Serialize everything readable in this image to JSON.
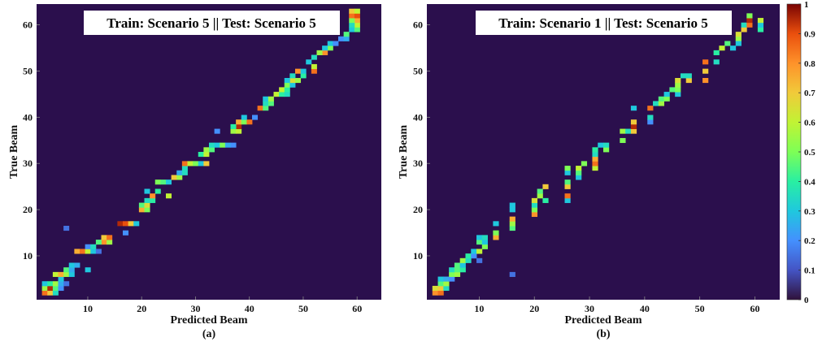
{
  "chart_data": [
    {
      "type": "heatmap",
      "panel_label": "(a)",
      "title": "Train: Scenario 5 || Test: Scenario 5",
      "xlabel": "Predicted Beam",
      "ylabel": "True Beam",
      "xlim": [
        1,
        64
      ],
      "ylim": [
        1,
        64
      ],
      "xticks": [
        10,
        20,
        30,
        40,
        50,
        60
      ],
      "yticks": [
        10,
        20,
        30,
        40,
        50,
        60
      ],
      "background_color": "#2b0f4d",
      "cells": [
        [
          2,
          2,
          0.85
        ],
        [
          2,
          3,
          0.7
        ],
        [
          2,
          4,
          0.35
        ],
        [
          3,
          2,
          0.55
        ],
        [
          3,
          3,
          0.95
        ],
        [
          3,
          4,
          0.45
        ],
        [
          3,
          5,
          0.2
        ],
        [
          4,
          2,
          0.3
        ],
        [
          4,
          3,
          0.4
        ],
        [
          4,
          4,
          0.55
        ],
        [
          4,
          5,
          0.25
        ],
        [
          4,
          6,
          0.15
        ],
        [
          5,
          5,
          0.3
        ],
        [
          6,
          4,
          0.6
        ],
        [
          6,
          5,
          0.75
        ],
        [
          6,
          6,
          0.55
        ],
        [
          6,
          7,
          0.3
        ],
        [
          7,
          6,
          0.45
        ],
        [
          7,
          7,
          0.25
        ],
        [
          7,
          10,
          0.3
        ],
        [
          8,
          7,
          0.3
        ],
        [
          8,
          8,
          0.25
        ],
        [
          11,
          8,
          0.75
        ],
        [
          11,
          9,
          0.85
        ],
        [
          11,
          10,
          0.6
        ],
        [
          11,
          11,
          0.3
        ],
        [
          11,
          12,
          0.15
        ],
        [
          12,
          10,
          0.2
        ],
        [
          12,
          11,
          0.35
        ],
        [
          13,
          13,
          0.8
        ],
        [
          13,
          14,
          0.55
        ],
        [
          13,
          12,
          0.45
        ],
        [
          14,
          13,
          0.7
        ],
        [
          14,
          14,
          0.85
        ],
        [
          15,
          17,
          0.2
        ],
        [
          16,
          6,
          0.15
        ],
        [
          17,
          16,
          0.95
        ],
        [
          17,
          17,
          0.9
        ],
        [
          17,
          18,
          0.7
        ],
        [
          17,
          19,
          0.3
        ],
        [
          20,
          20,
          0.75
        ],
        [
          20,
          21,
          0.5
        ],
        [
          21,
          20,
          0.45
        ],
        [
          21,
          21,
          0.65
        ],
        [
          22,
          22,
          0.4
        ],
        [
          22,
          21,
          0.35
        ],
        [
          23,
          22,
          0.8
        ],
        [
          23,
          25,
          0.6
        ],
        [
          24,
          23,
          0.4
        ],
        [
          24,
          21,
          0.3
        ],
        [
          26,
          23,
          0.5
        ],
        [
          26,
          24,
          0.45
        ],
        [
          26,
          25,
          0.3
        ],
        [
          27,
          26,
          0.7
        ],
        [
          27,
          27,
          0.55
        ],
        [
          28,
          27,
          0.25
        ],
        [
          28,
          28,
          0.35
        ],
        [
          29,
          28,
          0.35
        ],
        [
          30,
          28,
          0.85
        ],
        [
          30,
          29,
          0.6
        ],
        [
          30,
          30,
          0.5
        ],
        [
          30,
          31,
          0.3
        ],
        [
          30,
          32,
          0.7
        ],
        [
          32,
          31,
          0.4
        ],
        [
          32,
          32,
          0.6
        ],
        [
          33,
          32,
          0.55
        ],
        [
          33,
          33,
          0.45
        ],
        [
          34,
          33,
          0.35
        ],
        [
          34,
          34,
          0.3
        ],
        [
          34,
          35,
          0.5
        ],
        [
          34,
          36,
          0.25
        ],
        [
          34,
          37,
          0.2
        ],
        [
          37,
          34,
          0.2
        ],
        [
          37,
          37,
          0.55
        ],
        [
          37,
          38,
          0.6
        ],
        [
          38,
          38,
          0.95
        ],
        [
          38,
          37,
          0.4
        ],
        [
          39,
          38,
          0.75
        ],
        [
          39,
          39,
          0.5
        ],
        [
          39,
          40,
          0.85
        ],
        [
          40,
          39,
          0.3
        ],
        [
          40,
          41,
          0.2
        ],
        [
          42,
          42,
          0.85
        ],
        [
          42,
          43,
          0.45
        ],
        [
          43,
          43,
          0.35
        ],
        [
          43,
          44,
          0.45
        ],
        [
          44,
          43,
          0.3
        ],
        [
          44,
          44,
          0.55
        ],
        [
          45,
          45,
          0.6
        ],
        [
          45,
          46,
          0.4
        ],
        [
          45,
          47,
          0.35
        ],
        [
          46,
          46,
          0.6
        ],
        [
          46,
          47,
          0.4
        ],
        [
          47,
          47,
          0.5
        ],
        [
          47,
          48,
          0.3
        ],
        [
          48,
          48,
          0.65
        ],
        [
          48,
          49,
          0.55
        ],
        [
          48,
          47,
          0.3
        ],
        [
          49,
          50,
          0.4
        ],
        [
          49,
          48,
          0.35
        ],
        [
          50,
          49,
          0.8
        ],
        [
          50,
          50,
          0.3
        ],
        [
          50,
          52,
          0.85
        ],
        [
          51,
          52,
          0.6
        ],
        [
          52,
          51,
          0.3
        ],
        [
          53,
          52,
          0.35
        ],
        [
          54,
          54,
          0.8
        ],
        [
          54,
          53,
          0.55
        ],
        [
          55,
          55,
          0.5
        ],
        [
          55,
          54,
          0.3
        ],
        [
          56,
          55,
          0.3
        ],
        [
          56,
          56,
          0.2
        ],
        [
          57,
          57,
          0.2
        ],
        [
          57,
          58,
          0.25
        ],
        [
          58,
          58,
          0.45
        ],
        [
          59,
          59,
          0.3
        ],
        [
          59,
          60,
          0.45
        ],
        [
          60,
          60,
          0.6
        ],
        [
          60,
          59,
          0.35
        ],
        [
          61,
          60,
          0.75
        ],
        [
          61,
          59,
          0.5
        ],
        [
          62,
          59,
          0.85
        ],
        [
          62,
          60,
          0.9
        ],
        [
          63,
          59,
          0.7
        ],
        [
          63,
          60,
          0.6
        ]
      ]
    },
    {
      "type": "heatmap",
      "panel_label": "(b)",
      "title": "Train: Scenario 1 || Test: Scenario 5",
      "xlabel": "Predicted Beam",
      "ylabel": "True Beam",
      "xlim": [
        1,
        64
      ],
      "ylim": [
        1,
        64
      ],
      "xticks": [
        10,
        20,
        30,
        40,
        50,
        60
      ],
      "yticks": [
        10,
        20,
        30,
        40,
        50,
        60
      ],
      "background_color": "#2b0f4d",
      "colorbar": {
        "min": 0,
        "max": 1,
        "ticks": [
          "1",
          "0.9",
          "0.8",
          "0.7",
          "0.6",
          "0.5",
          "0.4",
          "0.3",
          "0.2",
          "0.1",
          "0"
        ]
      },
      "cells": [
        [
          2,
          2,
          0.8
        ],
        [
          2,
          3,
          0.85
        ],
        [
          3,
          2,
          0.65
        ],
        [
          3,
          3,
          0.7
        ],
        [
          3,
          4,
          0.35
        ],
        [
          4,
          3,
          0.45
        ],
        [
          4,
          4,
          0.55
        ],
        [
          5,
          3,
          0.3
        ],
        [
          5,
          4,
          0.25
        ],
        [
          5,
          5,
          0.2
        ],
        [
          6,
          5,
          0.5
        ],
        [
          6,
          6,
          0.55
        ],
        [
          7,
          5,
          0.35
        ],
        [
          7,
          6,
          0.45
        ],
        [
          7,
          7,
          0.4
        ],
        [
          8,
          6,
          0.45
        ],
        [
          8,
          7,
          0.3
        ],
        [
          9,
          7,
          0.55
        ],
        [
          9,
          8,
          0.35
        ],
        [
          10,
          8,
          0.4
        ],
        [
          10,
          9,
          0.2
        ],
        [
          11,
          9,
          0.3
        ],
        [
          9,
          10,
          0.15
        ],
        [
          11,
          10,
          0.6
        ],
        [
          12,
          11,
          0.5
        ],
        [
          13,
          10,
          0.45
        ],
        [
          13,
          11,
          0.3
        ],
        [
          14,
          10,
          0.3
        ],
        [
          14,
          11,
          0.35
        ],
        [
          14,
          13,
          0.75
        ],
        [
          15,
          13,
          0.5
        ],
        [
          17,
          13,
          0.3
        ],
        [
          6,
          16,
          0.15
        ],
        [
          16,
          16,
          0.45
        ],
        [
          17,
          16,
          0.55
        ],
        [
          18,
          16,
          0.75
        ],
        [
          20,
          16,
          0.3
        ],
        [
          21,
          16,
          0.3
        ],
        [
          19,
          20,
          0.8
        ],
        [
          20,
          20,
          0.5
        ],
        [
          21,
          20,
          0.35
        ],
        [
          22,
          20,
          0.65
        ],
        [
          23,
          21,
          0.55
        ],
        [
          22,
          22,
          0.4
        ],
        [
          24,
          21,
          0.45
        ],
        [
          25,
          22,
          0.7
        ],
        [
          22,
          26,
          0.3
        ],
        [
          23,
          26,
          0.85
        ],
        [
          25,
          26,
          0.7
        ],
        [
          26,
          26,
          0.45
        ],
        [
          28,
          26,
          0.3
        ],
        [
          29,
          26,
          0.5
        ],
        [
          27,
          28,
          0.3
        ],
        [
          28,
          28,
          0.45
        ],
        [
          29,
          28,
          0.6
        ],
        [
          30,
          29,
          0.5
        ],
        [
          29,
          31,
          0.6
        ],
        [
          30,
          31,
          0.85
        ],
        [
          31,
          31,
          0.75
        ],
        [
          32,
          31,
          0.35
        ],
        [
          33,
          31,
          0.4
        ],
        [
          34,
          32,
          0.3
        ],
        [
          33,
          33,
          0.5
        ],
        [
          34,
          33,
          0.35
        ],
        [
          35,
          36,
          0.5
        ],
        [
          37,
          36,
          0.55
        ],
        [
          37,
          37,
          0.35
        ],
        [
          37,
          38,
          0.7
        ],
        [
          38,
          38,
          0.95
        ],
        [
          39,
          38,
          0.7
        ],
        [
          42,
          38,
          0.3
        ],
        [
          39,
          41,
          0.2
        ],
        [
          40,
          41,
          0.35
        ],
        [
          42,
          41,
          0.85
        ],
        [
          43,
          42,
          0.35
        ],
        [
          43,
          43,
          0.55
        ],
        [
          44,
          43,
          0.45
        ],
        [
          44,
          44,
          0.5
        ],
        [
          45,
          44,
          0.3
        ],
        [
          46,
          45,
          0.45
        ],
        [
          45,
          46,
          0.3
        ],
        [
          46,
          46,
          0.5
        ],
        [
          47,
          46,
          0.55
        ],
        [
          48,
          46,
          0.65
        ],
        [
          49,
          47,
          0.35
        ],
        [
          48,
          48,
          0.7
        ],
        [
          49,
          48,
          0.35
        ],
        [
          48,
          51,
          0.8
        ],
        [
          50,
          51,
          0.7
        ],
        [
          52,
          51,
          0.85
        ],
        [
          52,
          53,
          0.35
        ],
        [
          54,
          53,
          0.4
        ],
        [
          55,
          54,
          0.6
        ],
        [
          56,
          55,
          0.45
        ],
        [
          55,
          56,
          0.3
        ],
        [
          57,
          57,
          0.55
        ],
        [
          58,
          57,
          0.65
        ],
        [
          59,
          58,
          0.7
        ],
        [
          60,
          58,
          0.35
        ],
        [
          60,
          59,
          0.85
        ],
        [
          61,
          59,
          0.95
        ],
        [
          62,
          59,
          0.5
        ],
        [
          59,
          61,
          0.4
        ],
        [
          60,
          61,
          0.3
        ],
        [
          61,
          61,
          0.6
        ],
        [
          56,
          57,
          0.3
        ]
      ]
    }
  ]
}
